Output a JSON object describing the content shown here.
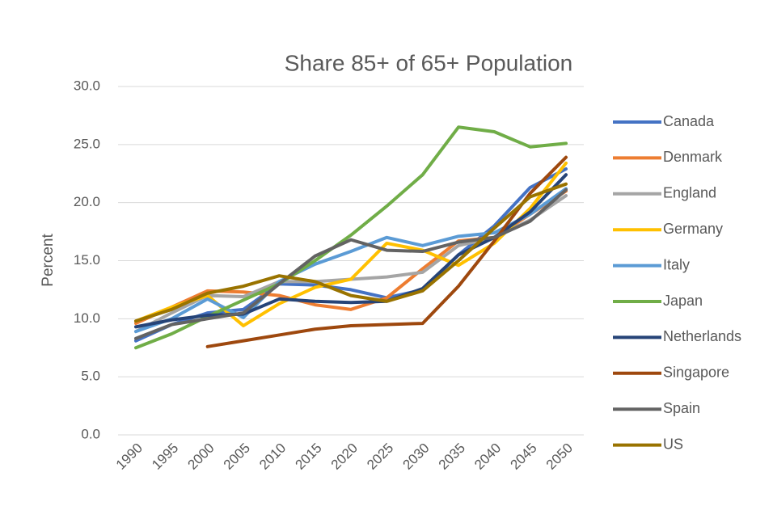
{
  "chart_data": {
    "type": "line",
    "title": "Share 85+ of 65+ Population",
    "y_label": "Percent",
    "categories": [
      "1990",
      "1995",
      "2000",
      "2005",
      "2010",
      "2015",
      "2020",
      "2025",
      "2030",
      "2035",
      "2040",
      "2045",
      "2050"
    ],
    "ylim": [
      0,
      30
    ],
    "yticks": [
      {
        "value": 0,
        "label": "0.0"
      },
      {
        "value": 5,
        "label": "5.0"
      },
      {
        "value": 10,
        "label": "10.0"
      },
      {
        "value": 15,
        "label": "15.0"
      },
      {
        "value": 20,
        "label": "20.0"
      },
      {
        "value": 25,
        "label": "25.0"
      },
      {
        "value": 30,
        "label": "30.0"
      }
    ],
    "grid": true,
    "legend": "right",
    "series": [
      {
        "name": "Canada",
        "color": "#4472c4",
        "values": [
          8.1,
          9.5,
          10.5,
          10.8,
          13.0,
          12.9,
          12.5,
          11.8,
          12.5,
          15.5,
          18.0,
          21.3,
          22.9
        ]
      },
      {
        "name": "Denmark",
        "color": "#ed7d31",
        "values": [
          9.6,
          11.0,
          12.4,
          12.3,
          12.0,
          11.2,
          10.8,
          11.8,
          14.3,
          16.7,
          17.0,
          19.0,
          21.0
        ]
      },
      {
        "name": "England",
        "color": "#a5a5a5",
        "values": [
          8.9,
          10.5,
          12.0,
          11.9,
          13.2,
          13.2,
          13.4,
          13.6,
          14.0,
          16.3,
          17.0,
          18.5,
          20.6
        ]
      },
      {
        "name": "Germany",
        "color": "#ffc000",
        "values": [
          9.8,
          11.0,
          12.0,
          9.4,
          11.3,
          12.7,
          13.4,
          16.5,
          15.9,
          14.6,
          16.5,
          19.5,
          23.4
        ]
      },
      {
        "name": "Italy",
        "color": "#5b9bd5",
        "values": [
          8.9,
          10.0,
          11.7,
          10.1,
          13.2,
          14.7,
          15.8,
          17.0,
          16.3,
          17.1,
          17.4,
          19.0,
          21.2
        ]
      },
      {
        "name": "Japan",
        "color": "#70ad47",
        "values": [
          7.5,
          8.7,
          10.2,
          11.6,
          13.0,
          15.0,
          17.2,
          19.7,
          22.4,
          26.5,
          26.1,
          24.8,
          25.1
        ]
      },
      {
        "name": "Netherlands",
        "color": "#264478",
        "values": [
          9.3,
          9.9,
          10.3,
          10.4,
          11.7,
          11.5,
          11.4,
          11.5,
          12.6,
          15.5,
          17.0,
          19.2,
          22.4
        ]
      },
      {
        "name": "Singapore",
        "color": "#9e480e",
        "values": [
          null,
          null,
          7.6,
          8.1,
          8.6,
          9.1,
          9.4,
          9.5,
          9.6,
          12.8,
          16.7,
          20.8,
          23.9
        ]
      },
      {
        "name": "Spain",
        "color": "#636363",
        "values": [
          8.3,
          9.5,
          10.0,
          10.5,
          13.0,
          15.4,
          16.8,
          15.9,
          15.8,
          16.6,
          17.0,
          18.4,
          21.1
        ]
      },
      {
        "name": "US",
        "color": "#997300",
        "values": [
          9.8,
          10.8,
          12.2,
          12.8,
          13.7,
          13.2,
          12.0,
          11.5,
          12.4,
          15.0,
          17.8,
          20.5,
          21.6
        ]
      }
    ]
  }
}
